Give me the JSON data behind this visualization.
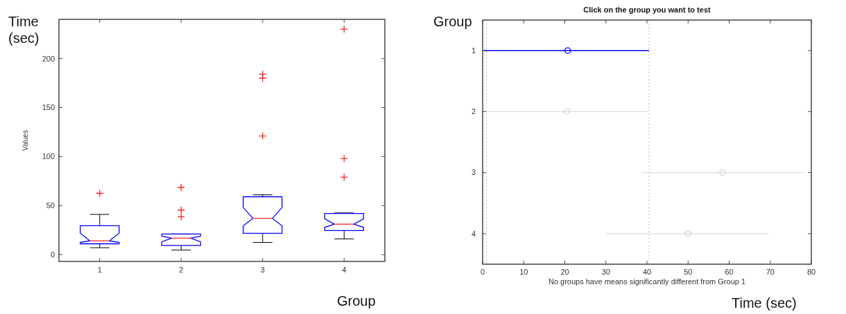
{
  "chart_data": [
    {
      "type": "box",
      "ylabel": "Values",
      "categories": [
        "1",
        "2",
        "3",
        "4"
      ],
      "ylim": [
        -7,
        240
      ],
      "yticks": [
        0,
        50,
        100,
        150,
        200
      ],
      "annotations": [
        "Time (sec)",
        "Group"
      ],
      "color": "#0000ff",
      "boxes": [
        {
          "low": 7,
          "q1": 11,
          "median": 14,
          "q3": 29.5,
          "high": 41,
          "outliers": [
            62.5
          ]
        },
        {
          "low": 4.6,
          "q1": 9.3,
          "median": 16.7,
          "q3": 21,
          "high": 21,
          "outliers": [
            38.6,
            45.4,
            68.5
          ]
        },
        {
          "low": 12.4,
          "q1": 21.6,
          "median": 37,
          "q3": 59,
          "high": 61,
          "outliers": [
            121,
            180,
            184
          ]
        },
        {
          "low": 16,
          "q1": 24.5,
          "median": 31,
          "q3": 42,
          "high": 42.5,
          "outliers": [
            79,
            98,
            230
          ]
        }
      ]
    },
    {
      "type": "scatter",
      "orientation": "horizontal",
      "title": "Click on the group you want to test",
      "xlabel": "No groups have means significantly different from Group 1",
      "categories": [
        "1",
        "2",
        "3",
        "4"
      ],
      "xlim": [
        0,
        80
      ],
      "xticks": [
        0,
        10,
        20,
        30,
        40,
        50,
        60,
        70,
        80
      ],
      "marker": "circle",
      "annotations": [
        "Group",
        "Time (sec)"
      ],
      "values": [
        20.7,
        20.5,
        58.4,
        50
      ],
      "errors": [
        [
          0.3,
          40.5
        ],
        [
          1.0,
          40.2
        ],
        [
          38.7,
          78.2
        ],
        [
          30.1,
          69.6
        ]
      ],
      "colors": [
        "#0000ff",
        "#d3d3d3",
        "#d3d3d3",
        "#d3d3d3"
      ],
      "ref_lines": [
        {
          "axis": "x",
          "value": 0.9,
          "color": "#bbbbbb",
          "line_style": "dotted"
        },
        {
          "axis": "x",
          "value": 40.5,
          "color": "#bbbbbb",
          "line_style": "dotted"
        }
      ]
    }
  ]
}
